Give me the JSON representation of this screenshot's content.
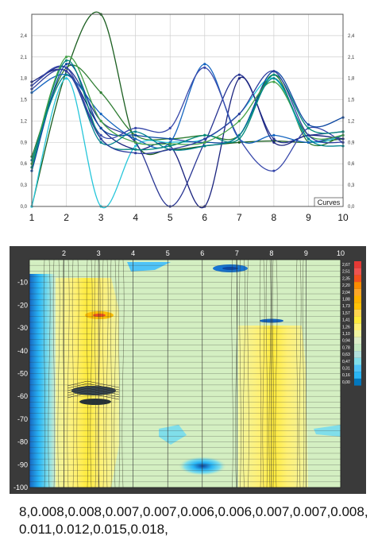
{
  "chart_data": [
    {
      "type": "line",
      "legend_label": "Curves",
      "legend_position": "bottom-right",
      "grid": true,
      "x": [
        1,
        2,
        3,
        4,
        5,
        6,
        7,
        8,
        9,
        10
      ],
      "x_ticks": [
        "1",
        "2",
        "3",
        "4",
        "5",
        "6",
        "7",
        "8",
        "9",
        "10"
      ],
      "ylim": [
        0.0,
        2.7
      ],
      "y_ticks": [
        "0,0",
        "0,3",
        "0,6",
        "0,9",
        "1,2",
        "1,5",
        "1,8",
        "2,1",
        "2,4"
      ],
      "y_tick_values": [
        0.0,
        0.3,
        0.6,
        0.9,
        1.2,
        1.5,
        1.8,
        2.1,
        2.4
      ],
      "series": [
        {
          "values": [
            0.0,
            1.9,
            2.7,
            0.9,
            0.8,
            0.85,
            0.9,
            0.92,
            0.9,
            0.95
          ],
          "color": "#1b5e20"
        },
        {
          "values": [
            0.7,
            1.95,
            1.6,
            1.0,
            0.95,
            1.0,
            1.0,
            1.85,
            0.9,
            1.0
          ],
          "color": "#2e7d32"
        },
        {
          "values": [
            0.0,
            1.8,
            0.0,
            0.85,
            0.9,
            0.95,
            1.3,
            1.8,
            0.95,
            1.0
          ],
          "color": "#26c6da"
        },
        {
          "values": [
            1.7,
            1.95,
            1.2,
            0.9,
            0.0,
            0.9,
            1.85,
            0.95,
            1.0,
            1.05
          ],
          "color": "#283593"
        },
        {
          "values": [
            1.75,
            1.9,
            1.1,
            0.8,
            0.85,
            0.0,
            1.8,
            0.9,
            1.0,
            0.95
          ],
          "color": "#1a237e"
        },
        {
          "values": [
            1.6,
            1.85,
            1.3,
            0.95,
            0.9,
            2.0,
            0.95,
            1.0,
            0.9,
            1.0
          ],
          "color": "#1565c0"
        },
        {
          "values": [
            1.7,
            1.95,
            1.0,
            1.1,
            1.1,
            1.95,
            0.95,
            0.5,
            1.1,
            0.9
          ],
          "color": "#3949ab"
        },
        {
          "values": [
            0.5,
            2.0,
            1.1,
            1.0,
            0.95,
            0.9,
            1.0,
            1.9,
            1.15,
            1.25
          ],
          "color": "#0d47a1"
        },
        {
          "values": [
            0.55,
            2.05,
            0.95,
            0.8,
            0.85,
            1.0,
            0.95,
            1.85,
            1.1,
            1.05
          ],
          "color": "#00897b"
        },
        {
          "values": [
            0.6,
            2.1,
            1.2,
            0.9,
            0.88,
            0.9,
            1.2,
            1.75,
            1.0,
            1.0
          ],
          "color": "#43a047"
        },
        {
          "values": [
            0.65,
            1.85,
            0.9,
            1.05,
            0.8,
            0.85,
            1.0,
            1.8,
            0.95,
            0.85
          ],
          "color": "#00838f"
        },
        {
          "values": [
            1.65,
            1.9,
            0.95,
            0.75,
            0.8,
            0.95,
            1.3,
            1.9,
            1.0,
            0.9
          ],
          "color": "#303f9f"
        }
      ]
    },
    {
      "type": "heatmap",
      "grid": true,
      "x_ticks": [
        "2",
        "3",
        "4",
        "5",
        "6",
        "7",
        "8",
        "9",
        "10"
      ],
      "x_tick_values": [
        2,
        3,
        4,
        5,
        6,
        7,
        8,
        9,
        10
      ],
      "xlim": [
        1,
        10
      ],
      "y_ticks": [
        "-10",
        "-20",
        "-30",
        "-40",
        "-50",
        "-60",
        "-70",
        "-80",
        "-90",
        "-100"
      ],
      "y_tick_values": [
        -10,
        -20,
        -30,
        -40,
        -50,
        -60,
        -70,
        -80,
        -90,
        -100
      ],
      "ylim": [
        -100,
        0
      ],
      "colorbar_labels": [
        "2,67",
        "2,51",
        "2,35",
        "2,20",
        "2,04",
        "1,88",
        "1,73",
        "1,57",
        "1,41",
        "1,26",
        "1,10",
        "0,94",
        "0,78",
        "0,63",
        "0,47",
        "0,31",
        "0,16",
        "0,00"
      ],
      "colorbar_colors": [
        "#e53935",
        "#ef5350",
        "#f4511e",
        "#fb8c00",
        "#ffa726",
        "#ffb300",
        "#ffc107",
        "#ffd54f",
        "#ffeb3b",
        "#fff176",
        "#f0f4a0",
        "#dcedc8",
        "#c5e8c0",
        "#b2dfdb",
        "#80deea",
        "#4fc3f7",
        "#29b6f6",
        "#0277bd"
      ],
      "colors": {
        "background": "#3a3a3a",
        "field": "#d4efc2",
        "warm": "#fff250",
        "cool": "#1e88e5"
      }
    }
  ],
  "data_line": "8,0.008,0.008,0.007,0.007,0.006,0.006,0.007,0.007,0.008,0.011,0.012,0.015,0.018,"
}
